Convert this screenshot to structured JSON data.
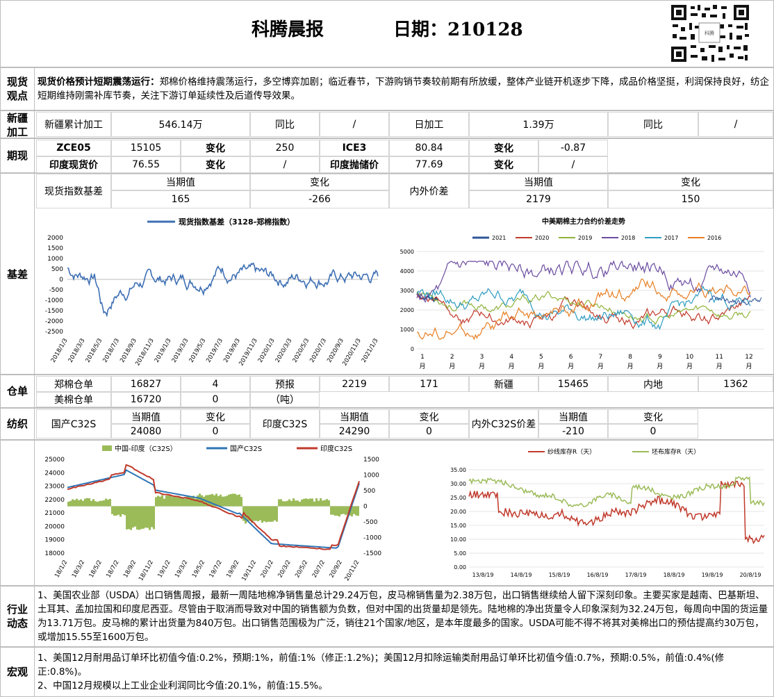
{
  "header": {
    "title": "科腾晨报",
    "date_label": "日期：210128"
  },
  "sections": {
    "spot_view": "现货\n观点",
    "xinjiang": "新疆\n加工",
    "futures": "期现",
    "basis": "基差",
    "warehouse": "仓单",
    "textile": "纺织",
    "industry": "行业\n动态",
    "macro": "宏观"
  },
  "spot_view": {
    "headline": "现货价格预计短期震荡运行：",
    "text": "郑棉价格维持震荡运行，多空博弈加剧；临近春节，下游购销节奏较前期有所放缓，整体产业链开机逐步下降，成品价格坚挺，利润保持良好，纺企短期维持刚需补库节奏，关注下游订单延续性及后道传导效果。"
  },
  "xinjiang": {
    "cum_label": "新疆累计加工",
    "cum_value": "546.14万",
    "yoy_label1": "同比",
    "yoy_value1": "/",
    "daily_label": "日加工",
    "daily_value": "1.39万",
    "yoy_label2": "同比",
    "yoy_value2": "/"
  },
  "futures": {
    "r1": [
      "ZCE05",
      "15105",
      "变化",
      "250",
      "ICE3",
      "80.84",
      "变化",
      "-0.87"
    ],
    "r2": [
      "印度现货价",
      "76.55",
      "变化",
      "/",
      "印度抛储价",
      "77.69",
      "变化",
      "/"
    ]
  },
  "basis_table": {
    "label1": "现货指数基差",
    "cur_h": "当期值",
    "chg_h": "变化",
    "v1": "165",
    "c1": "-266",
    "label2": "内外价差",
    "cur_h2": "当期值",
    "chg_h2": "变化",
    "v2": "2179",
    "c2": "150"
  },
  "chart_basis": {
    "legend": "现货指数基差（3128-郑棉指数）",
    "color": "#3d6fb4",
    "yticks": [
      "2000",
      "1500",
      "1000",
      "500",
      "0",
      "-500",
      "-1000",
      "-1500",
      "-2000",
      "-2500"
    ],
    "xticks": [
      "2018/1/3",
      "2018/3/3",
      "2018/5/3",
      "2018/7/3",
      "2018/9/3",
      "2018/11/3",
      "2019/1/3",
      "2019/3/3",
      "2019/5/3",
      "2019/7/3",
      "2019/9/3",
      "2019/11/3",
      "2020/1/3",
      "2020/3/3",
      "2020/5/3",
      "2020/7/3",
      "2020/9/3",
      "2020/11/3",
      "2021/1/3"
    ]
  },
  "chart_spread": {
    "title": "中美期棉主力合约价差走势",
    "series": [
      {
        "name": "2021",
        "color": "#2f5597"
      },
      {
        "name": "2020",
        "color": "#c0392b"
      },
      {
        "name": "2019",
        "color": "#8fb33a"
      },
      {
        "name": "2018",
        "color": "#6a4ba0"
      },
      {
        "name": "2017",
        "color": "#2f9cc0"
      },
      {
        "name": "2016",
        "color": "#e67e22"
      }
    ],
    "yticks": [
      "5000",
      "4000",
      "3000",
      "2000",
      "1000",
      "0"
    ],
    "xticks": [
      "1\n月",
      "2\n月",
      "3\n月",
      "4\n月",
      "5\n月",
      "6\n月",
      "7\n月",
      "8\n月",
      "9\n月",
      "10\n月",
      "11\n月",
      "12\n月"
    ]
  },
  "warehouse": {
    "zc_label": "郑棉仓单",
    "zc_value": "16827",
    "zc_chg": "4",
    "fc_label": "预报",
    "fc_value": "2219",
    "fc_chg": "171",
    "xj_label": "新疆",
    "xj_value": "15465",
    "nd_label": "内地",
    "nd_value": "1362",
    "us_label": "美棉仓单",
    "us_value": "16720",
    "us_chg": "0",
    "unit": "（吨）"
  },
  "textile": {
    "dom_label": "国产C32S",
    "cur_h": "当期值",
    "chg_h": "变化",
    "dom_v": "24080",
    "dom_c": "0",
    "ind_label": "印度C32S",
    "ind_v": "24290",
    "ind_c": "0",
    "diff_label": "内外C32S价差",
    "diff_v": "-210",
    "diff_c": "0"
  },
  "chart_yarn": {
    "legend": [
      "中国-印度（C32S）",
      "国产C32S",
      "印度C32S"
    ],
    "colors": [
      "#9bbb59",
      "#2e75b6",
      "#c0392b"
    ],
    "yleft": [
      "25000",
      "24000",
      "23000",
      "22000",
      "21000",
      "20000",
      "19000",
      "18000"
    ],
    "yright": [
      "1500",
      "1000",
      "500",
      "0",
      "-500",
      "-1000",
      "-1500"
    ],
    "xticks": [
      "18/1/2",
      "18/3/2",
      "18/5/2",
      "18/7/2",
      "18/9/2",
      "18/11/2",
      "19/1/2",
      "19/3/2",
      "19/5/2",
      "19/7/2",
      "19/9/2",
      "19/11/2",
      "20/1/2",
      "20/3/2",
      "20/5/2",
      "20/7/2",
      "20/9/2",
      "20/11/2"
    ]
  },
  "chart_stock": {
    "legend": [
      "纱线库存R（天）",
      "坯布库存R（天）"
    ],
    "colors": [
      "#c0392b",
      "#9bbb59"
    ],
    "yticks": [
      "35.00",
      "30.00",
      "25.00",
      "20.00",
      "15.00",
      "10.00",
      "5.00",
      "0.00"
    ],
    "xticks": [
      "13/8/19",
      "14/8/19",
      "15/8/19",
      "16/8/19",
      "17/8/19",
      "18/8/19",
      "19/8/19",
      "20/8/19"
    ]
  },
  "industry": {
    "text": "1、美国农业部（USDA）出口销售周报，最新一周陆地棉净销售量总计29.24万包，皮马棉销售量为2.38万包，出口销售继续给人留下深刻印象。主要买家是越南、巴基斯坦、土耳其、孟加拉国和印度尼西亚。尽管由于取消而导致对中国的销售额为负数，但对中国的出货量却是领先。陆地棉的净出货量令人印象深刻为32.24万包，每周向中国的货运量为13.71万包。皮马棉的累计出货量为840万包。出口销售范围极为广泛，销往21个国家/地区，是本年度最多的国家。USDA可能不得不将其对美棉出口的预估提高约30万包，或增加15.55至1600万包。"
  },
  "macro": {
    "l1": "1、美国12月耐用品订单环比初值今值:0.2%，预期:1%，前值:1%（修正:1.2%)；美国12月扣除运输类耐用品订单环比初值今值:0.7%，预期:0.5%，前值:0.4%(修正:0.8%)。",
    "l2": "2、中国12月规模以上工业企业利润同比今值:20.1%，前值:15.5%。"
  }
}
